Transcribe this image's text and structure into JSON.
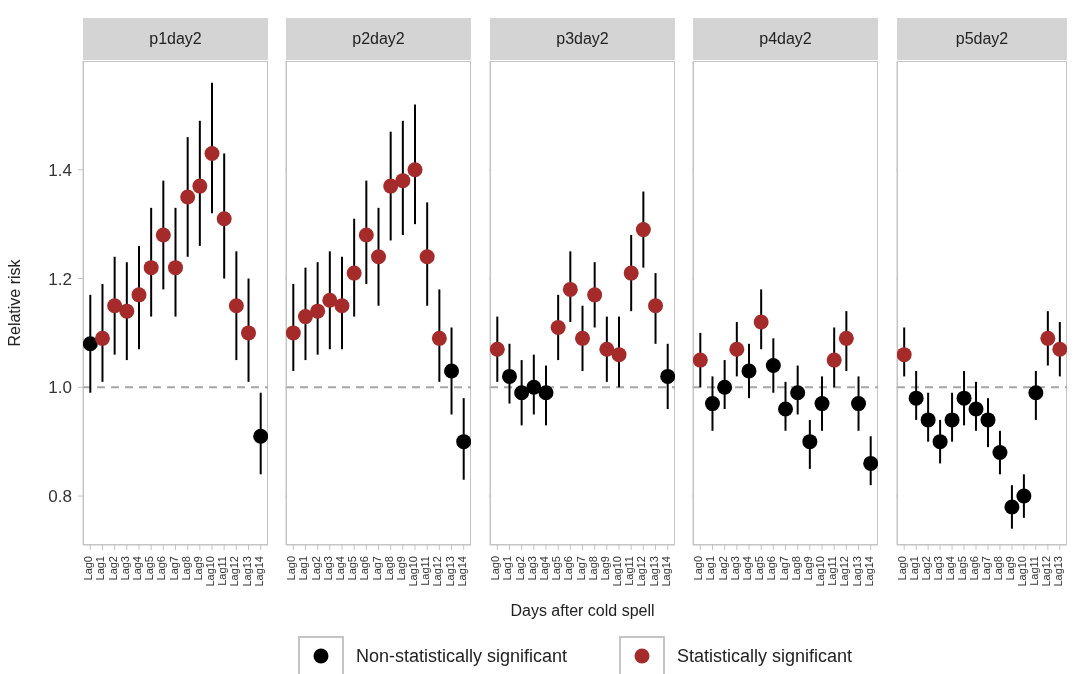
{
  "chart_data": [
    {
      "type": "scatter",
      "title": "p1day2",
      "ylabel": "Relative risk",
      "legend": "bottom",
      "categories": [
        "Lag0",
        "Lag1",
        "Lag2",
        "Lag3",
        "Lag4",
        "Lag5",
        "Lag6",
        "Lag7",
        "Lag8",
        "Lag9",
        "Lag10",
        "Lag11",
        "Lag12",
        "Lag13",
        "Lag14"
      ],
      "ylim": [
        0.71,
        1.6
      ],
      "yticks": [
        0.8,
        {
          "value": 1,
          "label": "1.0"
        },
        1.2,
        1.4
      ],
      "marker": "circle",
      "ref_lines": [
        {
          "axis": "y",
          "value": 1,
          "color": "#a6a6a6",
          "line_style": "dashed"
        }
      ],
      "series": [
        {
          "name": "Non-statistically significant",
          "color": "#000000",
          "values": [
            1.08,
            null,
            null,
            null,
            null,
            null,
            null,
            null,
            null,
            null,
            null,
            null,
            null,
            null,
            0.91
          ],
          "errors": [
            [
              0.99,
              1.17
            ],
            null,
            null,
            null,
            null,
            null,
            null,
            null,
            null,
            null,
            null,
            null,
            null,
            null,
            [
              0.84,
              0.99
            ]
          ]
        },
        {
          "name": "Statistically significant",
          "color": "#a52a2a",
          "values": [
            null,
            1.09,
            1.15,
            1.14,
            1.17,
            1.22,
            1.28,
            1.22,
            1.35,
            1.37,
            1.43,
            1.31,
            1.15,
            1.1,
            null
          ],
          "errors": [
            null,
            [
              1.01,
              1.19
            ],
            [
              1.06,
              1.24
            ],
            [
              1.05,
              1.23
            ],
            [
              1.07,
              1.26
            ],
            [
              1.13,
              1.33
            ],
            [
              1.18,
              1.38
            ],
            [
              1.13,
              1.33
            ],
            [
              1.24,
              1.46
            ],
            [
              1.26,
              1.49
            ],
            [
              1.32,
              1.56
            ],
            [
              1.2,
              1.43
            ],
            [
              1.05,
              1.25
            ],
            [
              1.01,
              1.2
            ],
            null
          ]
        }
      ]
    },
    {
      "type": "scatter",
      "title": "p2day2",
      "tick_labels": "x",
      "categories": [
        "Lag0",
        "Lag1",
        "Lag2",
        "Lag3",
        "Lag4",
        "Lag5",
        "Lag6",
        "Lag7",
        "Lag8",
        "Lag9",
        "Lag10",
        "Lag11",
        "Lag12",
        "Lag13",
        "Lag14"
      ],
      "ylim": [
        0.71,
        1.6
      ],
      "yticks": [
        {
          "value": 0.8,
          "label": null
        },
        {
          "value": 1,
          "label": null
        },
        {
          "value": 1.2,
          "label": null
        },
        {
          "value": 1.4,
          "label": null
        }
      ],
      "marker": "circle",
      "ref_lines": [
        {
          "axis": "y",
          "value": 1,
          "color": "#a6a6a6",
          "line_style": "dashed"
        }
      ],
      "series": [
        {
          "color": "#000000",
          "values": [
            null,
            null,
            null,
            null,
            null,
            null,
            null,
            null,
            null,
            null,
            null,
            null,
            null,
            1.03,
            0.9
          ],
          "errors": [
            null,
            null,
            null,
            null,
            null,
            null,
            null,
            null,
            null,
            null,
            null,
            null,
            null,
            [
              0.95,
              1.11
            ],
            [
              0.83,
              0.98
            ]
          ]
        },
        {
          "color": "#a52a2a",
          "values": [
            1.1,
            1.13,
            1.14,
            1.16,
            1.15,
            1.21,
            1.28,
            1.24,
            1.37,
            1.38,
            1.4,
            1.24,
            1.09,
            null,
            null
          ],
          "errors": [
            [
              1.03,
              1.19
            ],
            [
              1.05,
              1.22
            ],
            [
              1.06,
              1.23
            ],
            [
              1.07,
              1.25
            ],
            [
              1.07,
              1.24
            ],
            [
              1.13,
              1.31
            ],
            [
              1.19,
              1.38
            ],
            [
              1.15,
              1.33
            ],
            [
              1.27,
              1.47
            ],
            [
              1.28,
              1.49
            ],
            [
              1.3,
              1.52
            ],
            [
              1.15,
              1.34
            ],
            [
              1.01,
              1.18
            ],
            null,
            null
          ]
        }
      ]
    },
    {
      "type": "scatter",
      "title": "p3day2",
      "tick_labels": "x",
      "xlabel": "Days after cold spell",
      "categories": [
        "Lag0",
        "Lag1",
        "Lag2",
        "Lag3",
        "Lag4",
        "Lag5",
        "Lag6",
        "Lag7",
        "Lag8",
        "Lag9",
        "Lag10",
        "Lag11",
        "Lag12",
        "Lag13",
        "Lag14"
      ],
      "ylim": [
        0.71,
        1.6
      ],
      "yticks": [
        {
          "value": 0.8,
          "label": null
        },
        {
          "value": 1,
          "label": null
        },
        {
          "value": 1.2,
          "label": null
        },
        {
          "value": 1.4,
          "label": null
        }
      ],
      "marker": "circle",
      "ref_lines": [
        {
          "axis": "y",
          "value": 1,
          "color": "#a6a6a6",
          "line_style": "dashed"
        }
      ],
      "series": [
        {
          "color": "#000000",
          "values": [
            null,
            1.02,
            0.99,
            1.0,
            0.99,
            null,
            null,
            null,
            null,
            null,
            null,
            null,
            null,
            null,
            1.02
          ],
          "errors": [
            null,
            [
              0.97,
              1.08
            ],
            [
              0.93,
              1.05
            ],
            [
              0.95,
              1.06
            ],
            [
              0.93,
              1.04
            ],
            null,
            null,
            null,
            null,
            null,
            null,
            null,
            null,
            null,
            [
              0.96,
              1.08
            ]
          ]
        },
        {
          "color": "#a52a2a",
          "values": [
            1.07,
            null,
            null,
            null,
            null,
            1.11,
            1.18,
            1.09,
            1.17,
            1.07,
            1.06,
            1.21,
            1.29,
            1.15,
            null
          ],
          "errors": [
            [
              1.01,
              1.13
            ],
            null,
            null,
            null,
            null,
            [
              1.05,
              1.17
            ],
            [
              1.12,
              1.25
            ],
            [
              1.03,
              1.15
            ],
            [
              1.11,
              1.23
            ],
            [
              1.01,
              1.13
            ],
            [
              1.0,
              1.13
            ],
            [
              1.14,
              1.28
            ],
            [
              1.22,
              1.36
            ],
            [
              1.08,
              1.21
            ],
            null
          ]
        }
      ]
    },
    {
      "type": "scatter",
      "title": "p4day2",
      "tick_labels": "x",
      "categories": [
        "Lag0",
        "Lag1",
        "Lag2",
        "Lag3",
        "Lag4",
        "Lag5",
        "Lag6",
        "Lag7",
        "Lag8",
        "Lag9",
        "Lag10",
        "Lag11",
        "Lag12",
        "Lag13",
        "Lag14"
      ],
      "ylim": [
        0.71,
        1.6
      ],
      "yticks": [
        {
          "value": 0.8,
          "label": null
        },
        {
          "value": 1,
          "label": null
        },
        {
          "value": 1.2,
          "label": null
        },
        {
          "value": 1.4,
          "label": null
        }
      ],
      "marker": "circle",
      "ref_lines": [
        {
          "axis": "y",
          "value": 1,
          "color": "#a6a6a6",
          "line_style": "dashed"
        }
      ],
      "series": [
        {
          "color": "#000000",
          "values": [
            null,
            0.97,
            1.0,
            null,
            1.03,
            null,
            1.04,
            0.96,
            0.99,
            0.9,
            0.97,
            null,
            null,
            0.97,
            0.86
          ],
          "errors": [
            null,
            [
              0.92,
              1.02
            ],
            [
              0.96,
              1.05
            ],
            null,
            [
              0.98,
              1.08
            ],
            null,
            [
              0.99,
              1.09
            ],
            [
              0.92,
              1.01
            ],
            [
              0.95,
              1.04
            ],
            [
              0.85,
              0.94
            ],
            [
              0.92,
              1.02
            ],
            null,
            null,
            [
              0.92,
              1.02
            ],
            [
              0.82,
              0.91
            ]
          ]
        },
        {
          "color": "#a52a2a",
          "values": [
            1.05,
            null,
            null,
            1.07,
            null,
            1.12,
            null,
            null,
            null,
            null,
            null,
            1.05,
            1.09,
            null,
            null
          ],
          "errors": [
            [
              1.0,
              1.1
            ],
            null,
            null,
            [
              1.02,
              1.12
            ],
            null,
            [
              1.07,
              1.18
            ],
            null,
            null,
            null,
            null,
            null,
            [
              1.0,
              1.11
            ],
            [
              1.03,
              1.14
            ],
            null,
            null
          ]
        }
      ]
    },
    {
      "type": "scatter",
      "title": "p5day2",
      "tick_labels": "x",
      "categories": [
        "Lag0",
        "Lag1",
        "Lag2",
        "Lag3",
        "Lag4",
        "Lag5",
        "Lag6",
        "Lag7",
        "Lag8",
        "Lag9",
        "Lag10",
        "Lag11",
        "Lag12",
        "Lag13"
      ],
      "ylim": [
        0.71,
        1.6
      ],
      "yticks": [
        {
          "value": 0.8,
          "label": null
        },
        {
          "value": 1,
          "label": null
        },
        {
          "value": 1.2,
          "label": null
        },
        {
          "value": 1.4,
          "label": null
        }
      ],
      "marker": "circle",
      "ref_lines": [
        {
          "axis": "y",
          "value": 1,
          "color": "#a6a6a6",
          "line_style": "dashed"
        }
      ],
      "series": [
        {
          "color": "#000000",
          "values": [
            null,
            0.98,
            0.94,
            0.9,
            0.94,
            0.98,
            0.96,
            0.94,
            0.88,
            0.78,
            0.8,
            0.99,
            null,
            null
          ],
          "errors": [
            null,
            [
              0.94,
              1.03
            ],
            [
              0.9,
              0.99
            ],
            [
              0.86,
              0.94
            ],
            [
              0.9,
              0.99
            ],
            [
              0.93,
              1.03
            ],
            [
              0.92,
              1.01
            ],
            [
              0.89,
              0.98
            ],
            [
              0.84,
              0.92
            ],
            [
              0.74,
              0.82
            ],
            [
              0.76,
              0.84
            ],
            [
              0.94,
              1.03
            ],
            null,
            null
          ]
        },
        {
          "color": "#a52a2a",
          "values": [
            1.06,
            null,
            null,
            null,
            null,
            null,
            null,
            null,
            null,
            null,
            null,
            null,
            1.09,
            1.07
          ],
          "errors": [
            [
              1.02,
              1.11
            ],
            null,
            null,
            null,
            null,
            null,
            null,
            null,
            null,
            null,
            null,
            null,
            [
              1.04,
              1.14
            ],
            [
              1.02,
              1.12
            ]
          ]
        }
      ]
    }
  ]
}
